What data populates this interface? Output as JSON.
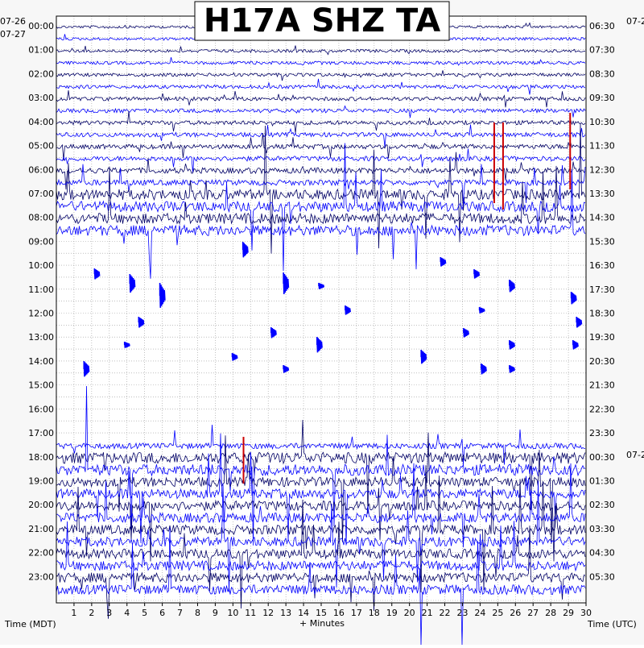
{
  "chart_data": {
    "type": "line",
    "title": "H17A SHZ TA",
    "xlabel": "+ Minutes",
    "ylabel_left": "Time (MDT)",
    "ylabel_right": "Time (UTC)",
    "xlim": [
      0,
      30
    ],
    "x_ticks": [
      "1",
      "2",
      "3",
      "4",
      "5",
      "6",
      "7",
      "8",
      "9",
      "10",
      "11",
      "12",
      "13",
      "14",
      "15",
      "16",
      "17",
      "18",
      "19",
      "20",
      "21",
      "22",
      "23",
      "24",
      "25",
      "26",
      "27",
      "28",
      "29",
      "30"
    ],
    "date_start_left": "07-26",
    "date_left": "07-27",
    "date_right_top": "07-2",
    "date_right_mid": "07-2",
    "hour_labels_left": [
      "00:00",
      "01:00",
      "02:00",
      "03:00",
      "04:00",
      "05:00",
      "06:00",
      "07:00",
      "08:00",
      "09:00",
      "10:00",
      "11:00",
      "12:00",
      "13:00",
      "14:00",
      "15:00",
      "16:00",
      "17:00",
      "18:00",
      "19:00",
      "20:00",
      "21:00",
      "22:00",
      "23:00"
    ],
    "hour_labels_right": [
      "06:30",
      "07:30",
      "08:30",
      "09:30",
      "10:30",
      "11:30",
      "12:30",
      "13:30",
      "14:30",
      "15:30",
      "16:30",
      "17:30",
      "18:30",
      "19:30",
      "20:30",
      "21:30",
      "22:30",
      "23:30",
      "00:30",
      "01:30",
      "02:30",
      "03:30",
      "04:30",
      "05:30"
    ],
    "grid": true,
    "trace_rows": 48,
    "minutes_per_row": 30,
    "trace_colors": [
      "#000066",
      "#0000ff"
    ],
    "clip_color": "#cc0000",
    "data_gap_hours": [
      "09:00 - 17:30 (isolated events only)"
    ],
    "clipped_events": [
      {
        "hour": "04:00 - 06:30",
        "minute": 24.8
      },
      {
        "hour": "04:00 - 06:30",
        "minute": 25.3
      },
      {
        "hour": "03:30 - 06:00",
        "minute": 29.1
      },
      {
        "hour": "17:00 - 18:00",
        "minute": 10.6
      }
    ]
  },
  "labels": {
    "title": "H17A SHZ TA",
    "time_left": "Time (MDT)",
    "time_right": "Time (UTC)",
    "x_axis": "+ Minutes"
  }
}
